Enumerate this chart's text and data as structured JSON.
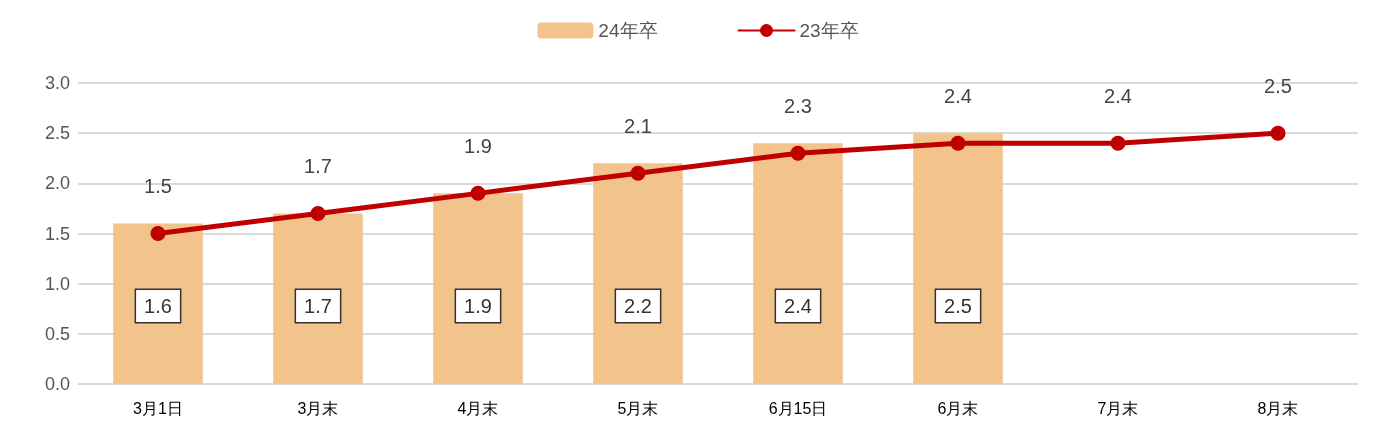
{
  "chart_data": {
    "type": "bar",
    "categories": [
      "3月1日",
      "3月末",
      "4月末",
      "5月末",
      "6月15日",
      "6月末",
      "7月末",
      "8月末"
    ],
    "series": [
      {
        "name": "24年卒",
        "color": "#f2c38b",
        "values": [
          1.6,
          1.7,
          1.9,
          2.2,
          2.4,
          2.5,
          null,
          null
        ]
      },
      {
        "name": "23年卒",
        "type": "line",
        "color": "#c00000",
        "values": [
          1.5,
          1.7,
          1.9,
          2.1,
          2.3,
          2.4,
          2.4,
          2.5
        ],
        "marker": "circle",
        "line_style": "solid"
      }
    ],
    "ylim": [
      0,
      3
    ],
    "yticks": [
      {
        "value": 0,
        "label": "0.0"
      },
      {
        "value": 0.5,
        "label": "0.5"
      },
      {
        "value": 1,
        "label": "1.0"
      },
      {
        "value": 1.5,
        "label": "1.5"
      },
      {
        "value": 2,
        "label": "2.0"
      },
      {
        "value": 2.5,
        "label": "2.5"
      },
      {
        "value": 3,
        "label": "3.0"
      }
    ],
    "grid": "y",
    "legend": "top",
    "data_labels": true
  }
}
